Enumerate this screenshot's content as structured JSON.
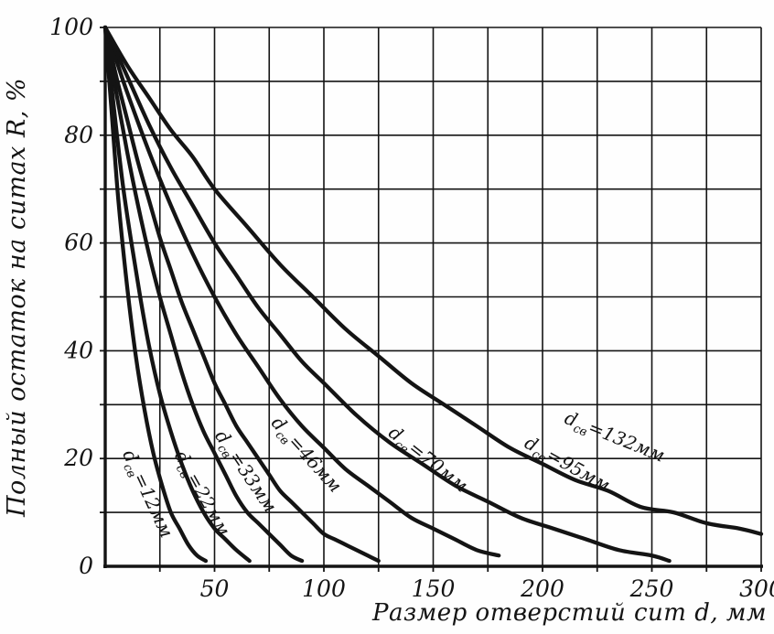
{
  "page": {
    "background": "#fefefe",
    "ink_color": "#141414"
  },
  "chart_data": {
    "type": "line",
    "title": "",
    "xlabel": "Размер отверстий сит d, мм",
    "ylabel": "Полный остаток на ситах R, %",
    "xlim": [
      0,
      300
    ],
    "ylim": [
      0,
      100
    ],
    "x_ticks": [
      50,
      100,
      150,
      200,
      250,
      300
    ],
    "y_ticks": [
      0,
      20,
      40,
      60,
      80,
      100
    ],
    "x_grid_step": 25,
    "y_grid_step": 10,
    "grid": true,
    "legend": "none (labels along curves)",
    "line_color": "#141414",
    "series": [
      {
        "name": "dсв = 12 мм",
        "var": "d",
        "sub": "св",
        "rest": "=12мм",
        "label_at": {
          "d": 17,
          "R": 13,
          "angle": 65
        },
        "points": [
          [
            0,
            100
          ],
          [
            3,
            84
          ],
          [
            6,
            68
          ],
          [
            10,
            52
          ],
          [
            14,
            39
          ],
          [
            18,
            29
          ],
          [
            22,
            21
          ],
          [
            26,
            15
          ],
          [
            30,
            10
          ],
          [
            34,
            7
          ],
          [
            38,
            4
          ],
          [
            42,
            2
          ],
          [
            46,
            1
          ]
        ]
      },
      {
        "name": "dсв = 22 мм",
        "var": "d",
        "sub": "св",
        "rest": "=22мм",
        "label_at": {
          "d": 42,
          "R": 13,
          "angle": 61
        },
        "points": [
          [
            0,
            100
          ],
          [
            4,
            85
          ],
          [
            8,
            71
          ],
          [
            12,
            60
          ],
          [
            16,
            50
          ],
          [
            20,
            41
          ],
          [
            25,
            32
          ],
          [
            30,
            25
          ],
          [
            35,
            19
          ],
          [
            40,
            14
          ],
          [
            45,
            10
          ],
          [
            50,
            7
          ],
          [
            55,
            5
          ],
          [
            60,
            3
          ],
          [
            66,
            1
          ]
        ]
      },
      {
        "name": "dсв = 33 мм",
        "var": "d",
        "sub": "св",
        "rest": "=33мм",
        "label_at": {
          "d": 62,
          "R": 17,
          "angle": 56
        },
        "points": [
          [
            0,
            100
          ],
          [
            5,
            88
          ],
          [
            10,
            77
          ],
          [
            15,
            67
          ],
          [
            20,
            58
          ],
          [
            25,
            50
          ],
          [
            30,
            43
          ],
          [
            35,
            36
          ],
          [
            40,
            30
          ],
          [
            45,
            25
          ],
          [
            50,
            21
          ],
          [
            55,
            17
          ],
          [
            60,
            13
          ],
          [
            65,
            10
          ],
          [
            70,
            8
          ],
          [
            75,
            6
          ],
          [
            80,
            4
          ],
          [
            85,
            2
          ],
          [
            90,
            1
          ]
        ]
      },
      {
        "name": "dсв = 46 мм",
        "var": "d",
        "sub": "св",
        "rest": "=46мм",
        "label_at": {
          "d": 90,
          "R": 20,
          "angle": 48
        },
        "points": [
          [
            0,
            100
          ],
          [
            5,
            91
          ],
          [
            10,
            83
          ],
          [
            15,
            75
          ],
          [
            20,
            68
          ],
          [
            25,
            61
          ],
          [
            30,
            55
          ],
          [
            35,
            49
          ],
          [
            40,
            44
          ],
          [
            45,
            39
          ],
          [
            50,
            34
          ],
          [
            55,
            30
          ],
          [
            60,
            26
          ],
          [
            65,
            23
          ],
          [
            70,
            20
          ],
          [
            75,
            17
          ],
          [
            80,
            14
          ],
          [
            85,
            12
          ],
          [
            90,
            10
          ],
          [
            95,
            8
          ],
          [
            100,
            6
          ],
          [
            105,
            5
          ],
          [
            110,
            4
          ],
          [
            115,
            3
          ],
          [
            120,
            2
          ],
          [
            125,
            1
          ]
        ]
      },
      {
        "name": "dсв = 70 мм",
        "var": "d",
        "sub": "св",
        "rest": "=70мм",
        "label_at": {
          "d": 146,
          "R": 19,
          "angle": 38
        },
        "points": [
          [
            0,
            100
          ],
          [
            5,
            94
          ],
          [
            10,
            88
          ],
          [
            20,
            77
          ],
          [
            30,
            67
          ],
          [
            40,
            58
          ],
          [
            50,
            50
          ],
          [
            60,
            43
          ],
          [
            70,
            37
          ],
          [
            80,
            31
          ],
          [
            90,
            26
          ],
          [
            100,
            22
          ],
          [
            110,
            18
          ],
          [
            120,
            15
          ],
          [
            130,
            12
          ],
          [
            140,
            9
          ],
          [
            150,
            7
          ],
          [
            160,
            5
          ],
          [
            170,
            3
          ],
          [
            180,
            2
          ]
        ]
      },
      {
        "name": "dсв = 95 мм",
        "var": "d",
        "sub": "св",
        "rest": "=95мм",
        "label_at": {
          "d": 210,
          "R": 18,
          "angle": 29
        },
        "points": [
          [
            0,
            100
          ],
          [
            10,
            91
          ],
          [
            20,
            82
          ],
          [
            30,
            74
          ],
          [
            40,
            67
          ],
          [
            50,
            60
          ],
          [
            60,
            54
          ],
          [
            70,
            48
          ],
          [
            80,
            43
          ],
          [
            90,
            38
          ],
          [
            100,
            34
          ],
          [
            115,
            28
          ],
          [
            130,
            23
          ],
          [
            145,
            19
          ],
          [
            160,
            15
          ],
          [
            175,
            12
          ],
          [
            190,
            9
          ],
          [
            205,
            7
          ],
          [
            220,
            5
          ],
          [
            235,
            3
          ],
          [
            250,
            2
          ],
          [
            258,
            1
          ]
        ]
      },
      {
        "name": "dсв = 132 мм",
        "var": "d",
        "sub": "св",
        "rest": "=132мм",
        "label_at": {
          "d": 232,
          "R": 23,
          "angle": 22
        },
        "points": [
          [
            0,
            100
          ],
          [
            10,
            93
          ],
          [
            20,
            87
          ],
          [
            30,
            81
          ],
          [
            40,
            76
          ],
          [
            50,
            70
          ],
          [
            65,
            63
          ],
          [
            80,
            56
          ],
          [
            95,
            50
          ],
          [
            110,
            44
          ],
          [
            125,
            39
          ],
          [
            140,
            34
          ],
          [
            155,
            30
          ],
          [
            170,
            26
          ],
          [
            185,
            22
          ],
          [
            200,
            19
          ],
          [
            215,
            16
          ],
          [
            230,
            14
          ],
          [
            245,
            11
          ],
          [
            260,
            10
          ],
          [
            275,
            8
          ],
          [
            290,
            7
          ],
          [
            300,
            6
          ]
        ]
      }
    ]
  }
}
